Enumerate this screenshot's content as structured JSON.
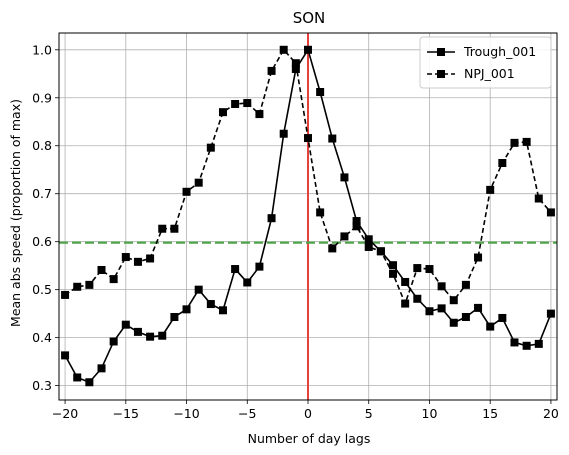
{
  "chart_data": {
    "type": "line",
    "title": "SON",
    "xlabel": "Number of day lags",
    "ylabel": "Mean abs speed (proportion of max)",
    "xlim": [
      -20.5,
      20.5
    ],
    "ylim": [
      0.27,
      1.035
    ],
    "xticks": [
      -20,
      -15,
      -10,
      -5,
      0,
      5,
      10,
      15,
      20
    ],
    "yticks": [
      0.3,
      0.4,
      0.5,
      0.6,
      0.7,
      0.8,
      0.9,
      1.0
    ],
    "xtick_labels": [
      "−20",
      "−15",
      "−10",
      "−5",
      "0",
      "5",
      "10",
      "15",
      "20"
    ],
    "ytick_labels": [
      "0.3",
      "0.4",
      "0.5",
      "0.6",
      "0.7",
      "0.8",
      "0.9",
      "1.0"
    ],
    "grid": true,
    "legend_position": "top-right",
    "x": [
      -20,
      -19,
      -18,
      -17,
      -16,
      -15,
      -14,
      -13,
      -12,
      -11,
      -10,
      -9,
      -8,
      -7,
      -6,
      -5,
      -4,
      -3,
      -2,
      -1,
      0,
      1,
      2,
      3,
      4,
      5,
      6,
      7,
      8,
      9,
      10,
      11,
      12,
      13,
      14,
      15,
      16,
      17,
      18,
      19,
      20
    ],
    "series": [
      {
        "name": "Trough_001",
        "style": "solid",
        "color": "#000000",
        "marker": "square",
        "values": [
          0.363,
          0.317,
          0.307,
          0.336,
          0.392,
          0.427,
          0.412,
          0.402,
          0.404,
          0.443,
          0.459,
          0.5,
          0.47,
          0.457,
          0.543,
          0.515,
          0.548,
          0.649,
          0.825,
          0.96,
          1.0,
          0.912,
          0.815,
          0.734,
          0.643,
          0.605,
          0.58,
          0.551,
          0.516,
          0.481,
          0.455,
          0.461,
          0.431,
          0.443,
          0.462,
          0.423,
          0.441,
          0.39,
          0.383,
          0.387,
          0.45
        ]
      },
      {
        "name": "NPJ_001",
        "style": "dashed",
        "color": "#000000",
        "marker": "square",
        "values": [
          0.489,
          0.506,
          0.51,
          0.541,
          0.522,
          0.568,
          0.558,
          0.565,
          0.627,
          0.627,
          0.704,
          0.723,
          0.796,
          0.87,
          0.887,
          0.889,
          0.866,
          0.956,
          1.0,
          0.972,
          0.816,
          0.661,
          0.586,
          0.611,
          0.632,
          0.589,
          0.58,
          0.533,
          0.471,
          0.545,
          0.543,
          0.507,
          0.478,
          0.51,
          0.567,
          0.708,
          0.764,
          0.806,
          0.808,
          0.69,
          0.661
        ]
      }
    ],
    "reference_lines": [
      {
        "orientation": "vertical",
        "value": 0,
        "color": "#e8413c",
        "style": "solid"
      },
      {
        "orientation": "horizontal",
        "value": 0.598,
        "color": "#4ea24a",
        "style": "dashed"
      }
    ]
  }
}
